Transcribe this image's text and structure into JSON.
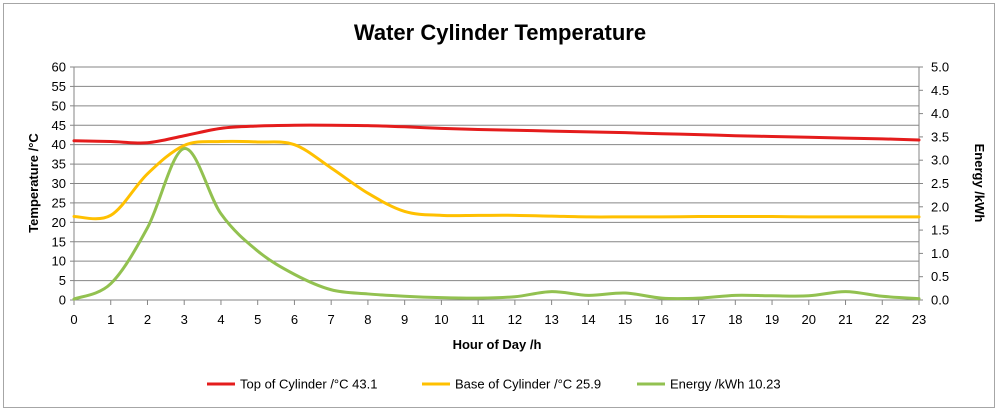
{
  "chart_data": {
    "type": "line",
    "title": "Water Cylinder Temperature",
    "xlabel": "Hour of Day /h",
    "ylabel": "Temperature /°C",
    "y2label": "Energy /kWh",
    "x": [
      0,
      1,
      2,
      3,
      4,
      5,
      6,
      7,
      8,
      9,
      10,
      11,
      12,
      13,
      14,
      15,
      16,
      17,
      18,
      19,
      20,
      21,
      22,
      23
    ],
    "xlim": [
      0,
      23
    ],
    "ylim": [
      0,
      60
    ],
    "y2lim": [
      0,
      5
    ],
    "yticks": [
      0,
      5,
      10,
      15,
      20,
      25,
      30,
      35,
      40,
      45,
      50,
      55,
      60
    ],
    "y2ticks": [
      "0.0",
      "0.5",
      "1.0",
      "1.5",
      "2.0",
      "2.5",
      "3.0",
      "3.5",
      "4.0",
      "4.5",
      "5.0"
    ],
    "grid": true,
    "legend_position": "bottom",
    "series": [
      {
        "name": "Top of Cylinder /°C 43.1",
        "axis": "left",
        "color": "#e41c1c",
        "values": [
          41,
          40.8,
          40.5,
          42.3,
          44.2,
          44.8,
          45,
          45,
          44.9,
          44.6,
          44.2,
          43.9,
          43.7,
          43.5,
          43.3,
          43.1,
          42.8,
          42.6,
          42.3,
          42.1,
          41.9,
          41.7,
          41.5,
          41.2
        ]
      },
      {
        "name": "Base of Cylinder /°C 25.9",
        "axis": "left",
        "color": "#ffc000",
        "values": [
          21.5,
          21.8,
          32.5,
          39.8,
          40.8,
          40.7,
          40,
          34,
          27.5,
          22.8,
          21.8,
          21.8,
          21.8,
          21.6,
          21.4,
          21.4,
          21.4,
          21.5,
          21.5,
          21.5,
          21.4,
          21.4,
          21.4,
          21.4
        ]
      },
      {
        "name": "Energy /kWh 10.23",
        "axis": "right",
        "color": "#92c150",
        "values": [
          0.02,
          0.35,
          1.55,
          3.25,
          1.85,
          1.05,
          0.55,
          0.22,
          0.13,
          0.08,
          0.05,
          0.04,
          0.07,
          0.18,
          0.1,
          0.15,
          0.04,
          0.04,
          0.1,
          0.09,
          0.09,
          0.18,
          0.08,
          0.03
        ]
      }
    ]
  }
}
